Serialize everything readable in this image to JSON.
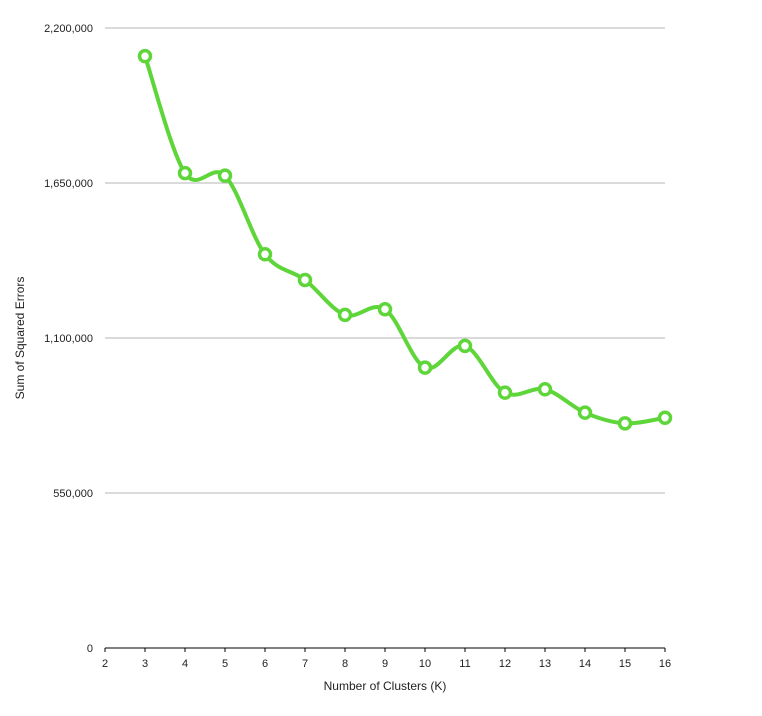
{
  "chart_data": {
    "type": "line",
    "title": "",
    "xlabel": "Number of Clusters (K)",
    "ylabel": "Sum of Squared Errors",
    "xlim": [
      2,
      16
    ],
    "ylim": [
      0,
      2200000
    ],
    "x_ticks": [
      "2",
      "3",
      "4",
      "5",
      "6",
      "7",
      "8",
      "9",
      "10",
      "11",
      "12",
      "13",
      "14",
      "15",
      "16"
    ],
    "y_ticks": [
      "0",
      "550,000",
      "1,100,000",
      "1,650,000",
      "2,200,000"
    ],
    "y_tick_values": [
      0,
      550000,
      1100000,
      1650000,
      2200000
    ],
    "grid": "horizontal",
    "smooth": true,
    "series": [
      {
        "color": "#5ed63a",
        "x": [
          3,
          4,
          5,
          6,
          7,
          8,
          9,
          10,
          11,
          12,
          13,
          14,
          15,
          16
        ],
        "values": [
          2100000,
          1685000,
          1676000,
          1397000,
          1306000,
          1182000,
          1202000,
          995000,
          1072000,
          906000,
          918000,
          835000,
          797000,
          817000
        ]
      }
    ]
  }
}
